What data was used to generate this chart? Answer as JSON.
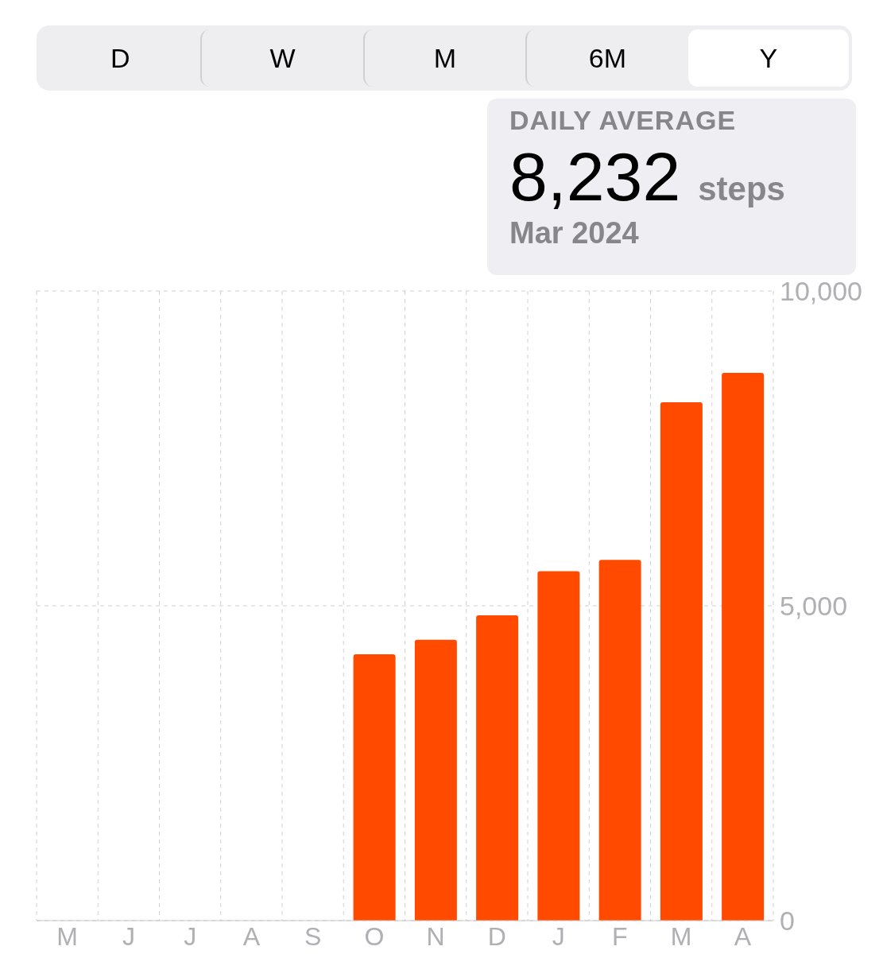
{
  "chart_data": {
    "type": "bar",
    "title": "DAILY AVERAGE",
    "annotations": [
      "D",
      "W",
      "M",
      "6M",
      "Y",
      "8,232 steps",
      "Mar 2024"
    ],
    "categories": [
      "M",
      "J",
      "J",
      "A",
      "S",
      "O",
      "N",
      "D",
      "J",
      "F",
      "M",
      "A"
    ],
    "values": [
      null,
      null,
      null,
      null,
      null,
      4230,
      4460,
      4850,
      5550,
      5730,
      8232,
      8700
    ],
    "color": "#ff4a00",
    "ylim": [
      0,
      10000
    ],
    "yticks": [
      0,
      {
        "value": 5000,
        "label": "5,000"
      },
      {
        "value": 10000,
        "label": "10,000"
      }
    ],
    "grid": true
  }
}
